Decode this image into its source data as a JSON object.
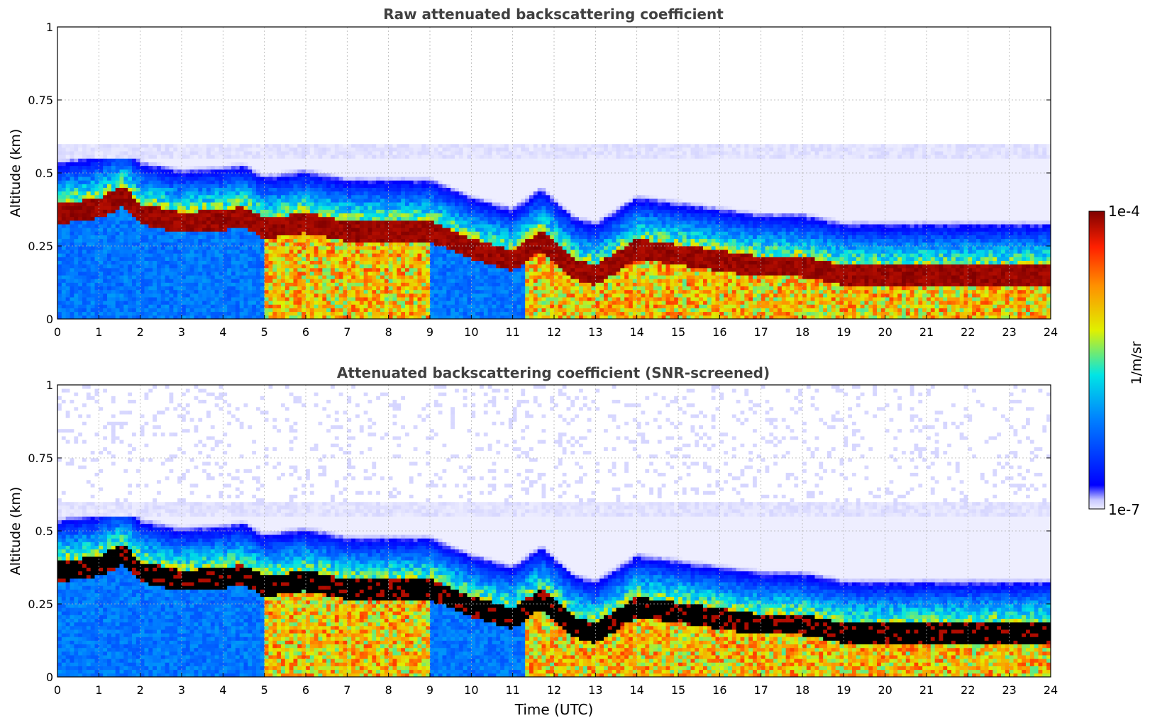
{
  "chart_data": [
    {
      "type": "heatmap",
      "title": "Raw attenuated backscattering coefficient",
      "xlabel": "",
      "ylabel": "Altitude (km)",
      "xlim": [
        0,
        24
      ],
      "ylim": [
        0,
        1
      ],
      "x_ticks": [
        "0",
        "1",
        "2",
        "3",
        "4",
        "5",
        "6",
        "7",
        "8",
        "9",
        "10",
        "11",
        "12",
        "13",
        "14",
        "15",
        "16",
        "17",
        "18",
        "19",
        "20",
        "21",
        "22",
        "23",
        "24"
      ],
      "y_ticks": [
        "0",
        "0.25",
        "0.5",
        "0.75",
        "1"
      ],
      "grid": true,
      "cloud_base_km": [
        [
          0,
          0.36
        ],
        [
          1,
          0.38
        ],
        [
          1.6,
          0.42
        ],
        [
          2,
          0.36
        ],
        [
          3,
          0.33
        ],
        [
          4,
          0.34
        ],
        [
          4.5,
          0.35
        ],
        [
          5,
          0.31
        ],
        [
          6,
          0.33
        ],
        [
          7,
          0.3
        ],
        [
          8,
          0.3
        ],
        [
          9,
          0.3
        ],
        [
          10,
          0.24
        ],
        [
          11,
          0.2
        ],
        [
          11.7,
          0.27
        ],
        [
          12.5,
          0.17
        ],
        [
          13,
          0.15
        ],
        [
          14,
          0.24
        ],
        [
          15,
          0.22
        ],
        [
          16,
          0.2
        ],
        [
          17,
          0.18
        ],
        [
          18,
          0.18
        ],
        [
          19,
          0.15
        ],
        [
          20,
          0.15
        ],
        [
          21,
          0.15
        ],
        [
          22,
          0.15
        ],
        [
          23,
          0.15
        ],
        [
          24,
          0.15
        ]
      ],
      "colorbar": {
        "label": "1/m/sr",
        "min_label": "1e-7",
        "max_label": "1e-4",
        "scale": "log",
        "colormap": "jet"
      }
    },
    {
      "type": "heatmap",
      "title": "Attenuated backscattering coefficient (SNR-screened)",
      "xlabel": "Time (UTC)",
      "ylabel": "Altitude (km)",
      "xlim": [
        0,
        24
      ],
      "ylim": [
        0,
        1
      ],
      "x_ticks": [
        "0",
        "1",
        "2",
        "3",
        "4",
        "5",
        "6",
        "7",
        "8",
        "9",
        "10",
        "11",
        "12",
        "13",
        "14",
        "15",
        "16",
        "17",
        "18",
        "19",
        "20",
        "21",
        "22",
        "23",
        "24"
      ],
      "y_ticks": [
        "0",
        "0.25",
        "0.5",
        "0.75",
        "1"
      ],
      "grid": true,
      "screened_color": "#000000"
    }
  ]
}
